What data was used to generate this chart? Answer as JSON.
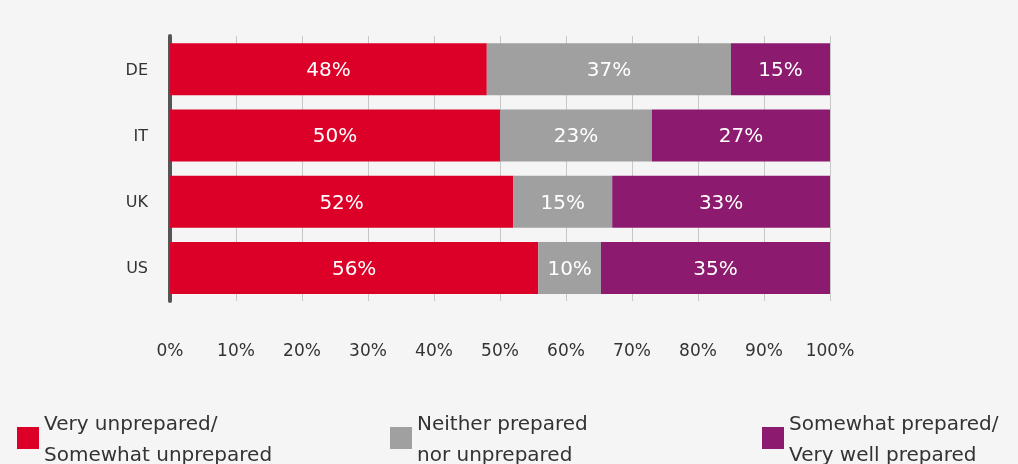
{
  "chart_data": {
    "type": "bar",
    "orientation": "horizontal",
    "stacked": true,
    "categories": [
      "DE",
      "IT",
      "UK",
      "US"
    ],
    "series": [
      {
        "name": "Very unprepared/\nSomewhat unprepared",
        "color": "#dc0028",
        "values": [
          48,
          50,
          52,
          55.8
        ],
        "value_labels": [
          "48%",
          "50%",
          "52%",
          "56%"
        ]
      },
      {
        "name": "Neither prepared\nnor unprepared",
        "color": "#a0a0a0",
        "values": [
          37,
          23,
          15,
          9.5
        ],
        "value_labels": [
          "37%",
          "23%",
          "15%",
          "10%"
        ]
      },
      {
        "name": "Somewhat prepared/\nVery well prepared",
        "color": "#8c1a6e",
        "values": [
          15,
          27,
          33,
          34.7
        ],
        "value_labels": [
          "15%",
          "27%",
          "33%",
          "35%"
        ]
      }
    ],
    "xlim": [
      0,
      100
    ],
    "xticks": [
      {
        "value": 0,
        "label": "0%"
      },
      {
        "value": 10,
        "label": "10%"
      },
      {
        "value": 20,
        "label": "20%"
      },
      {
        "value": 30,
        "label": "30%"
      },
      {
        "value": 40,
        "label": "40%"
      },
      {
        "value": 50,
        "label": "50%"
      },
      {
        "value": 60,
        "label": "60%"
      },
      {
        "value": 70,
        "label": "70%"
      },
      {
        "value": 80,
        "label": "80%"
      },
      {
        "value": 90,
        "label": "90%"
      },
      {
        "value": 100,
        "label": "100%"
      }
    ],
    "grid": "x",
    "legend": "bottom"
  }
}
